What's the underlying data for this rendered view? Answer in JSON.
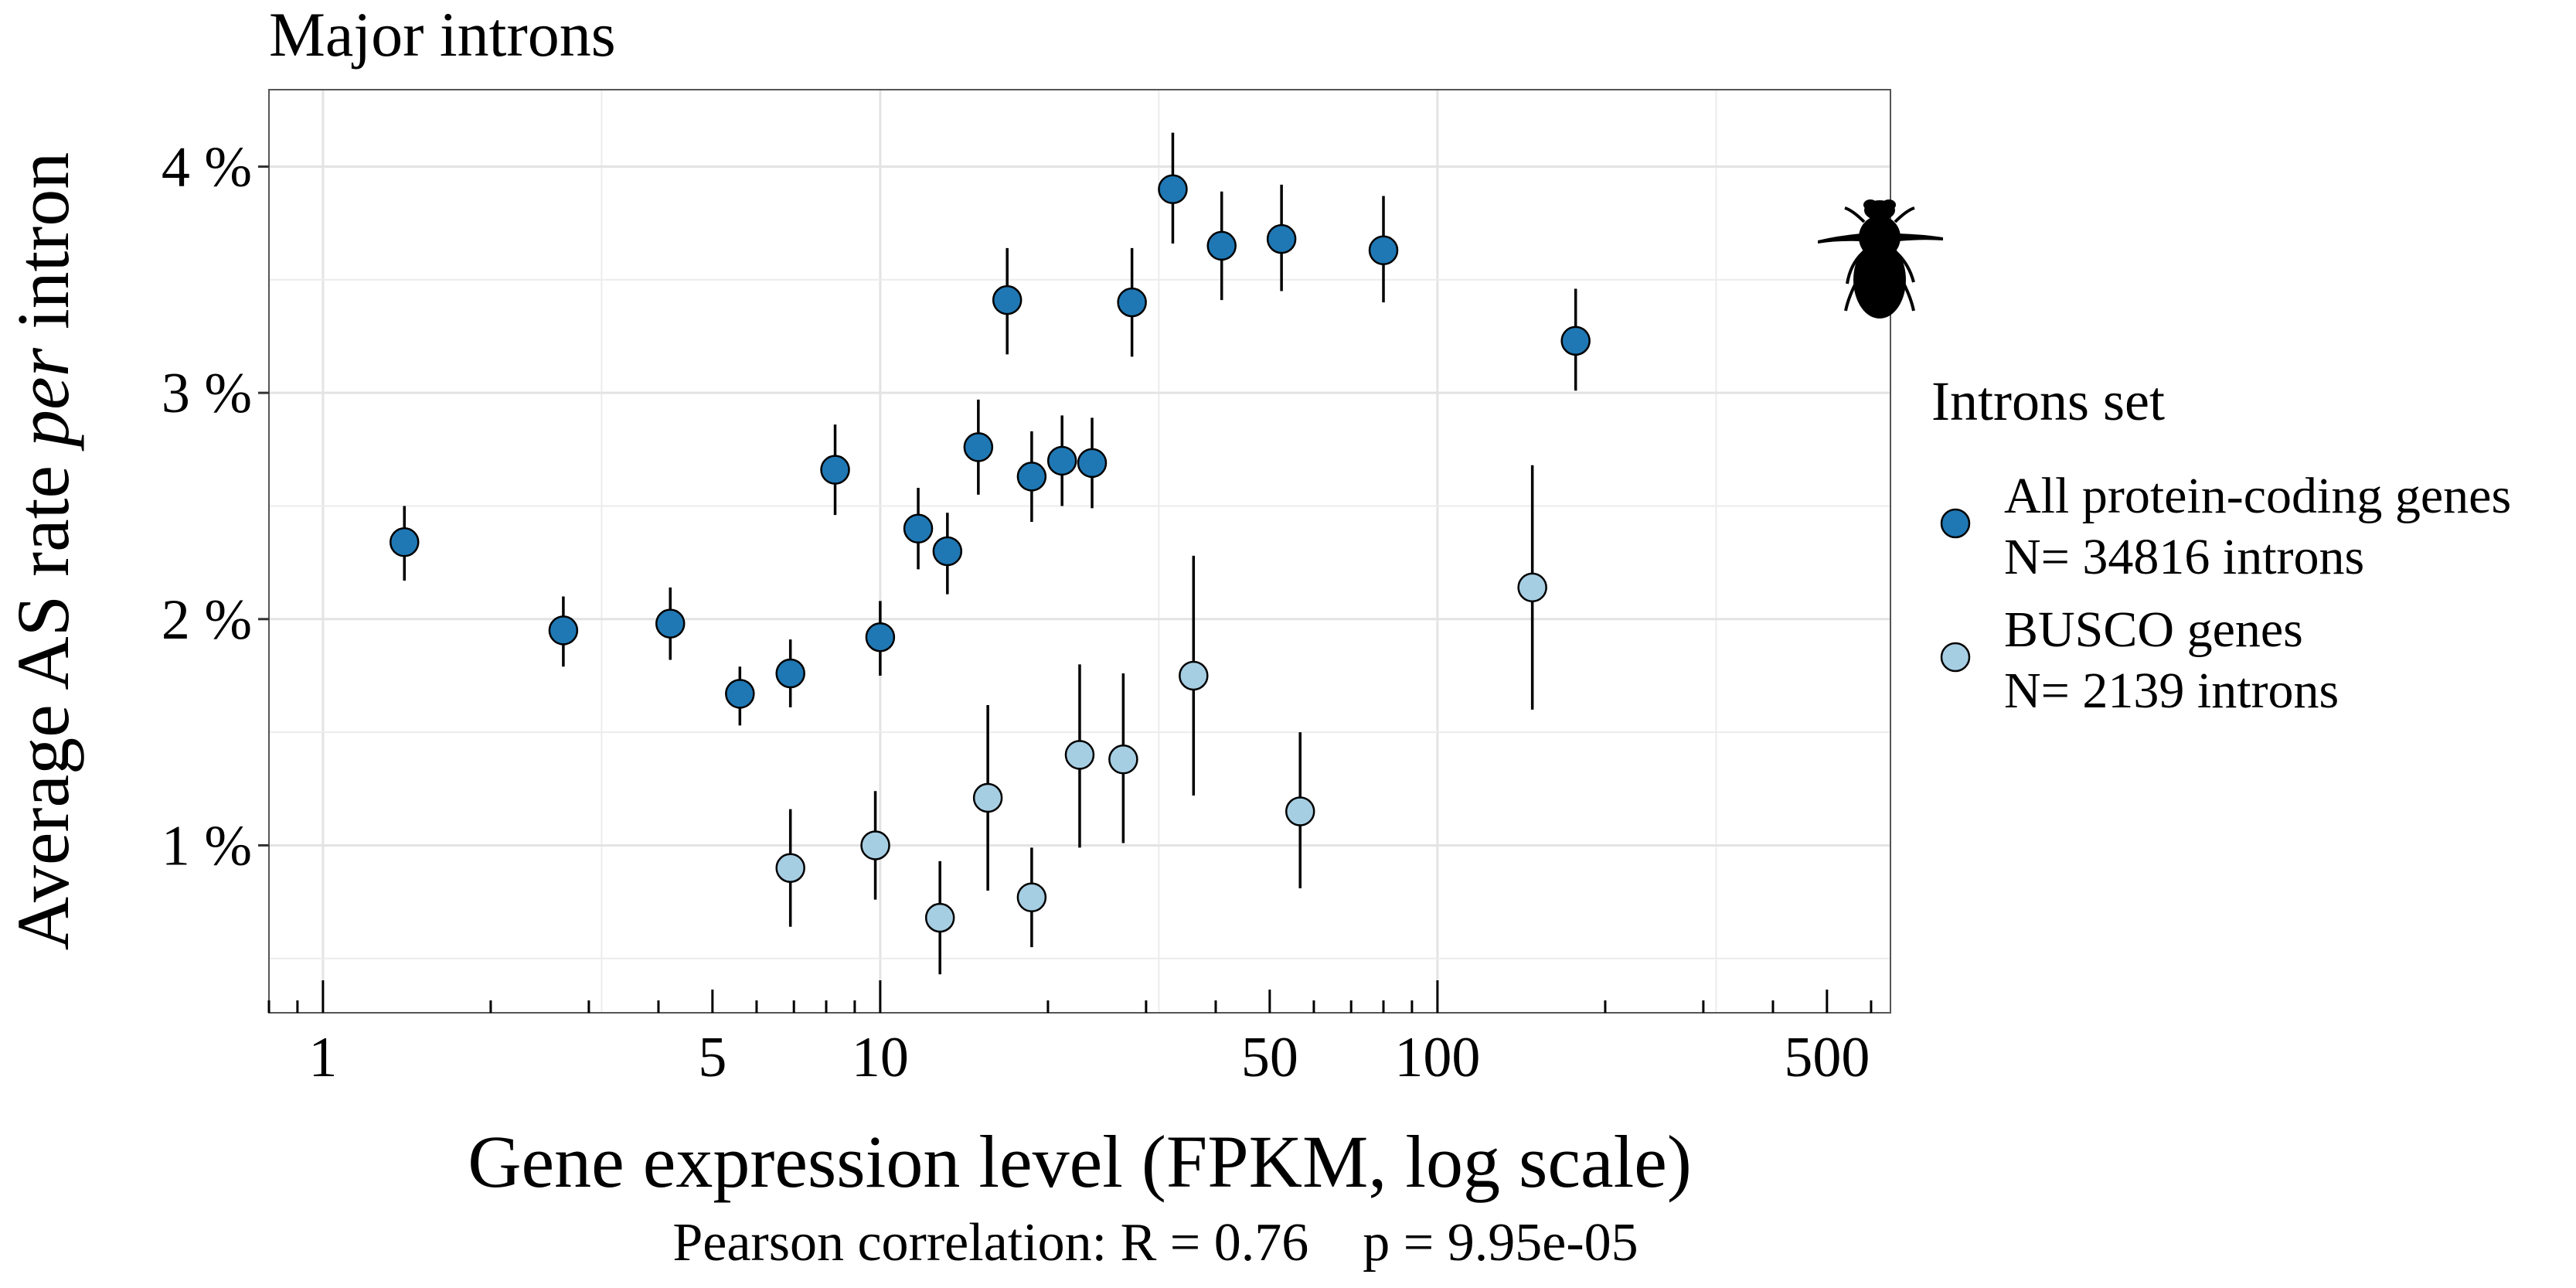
{
  "chart_data": {
    "type": "scatter",
    "title": "Major introns",
    "xlabel": "Gene expression level (FPKM, log scale)",
    "ylabel_prefix": "Average AS rate ",
    "ylabel_italic": "per",
    "ylabel_suffix": " intron",
    "x_scale": "log",
    "xlim": [
      0.8,
      650
    ],
    "ylim": [
      0.26,
      4.34
    ],
    "x_ticks": [
      1,
      5,
      10,
      50,
      100,
      500
    ],
    "x_tick_labels": [
      "1",
      "5",
      "10",
      "50",
      "100",
      "500"
    ],
    "y_ticks": [
      1,
      2,
      3,
      4
    ],
    "y_tick_labels": [
      "1 %",
      "2 %",
      "3 %",
      "4 %"
    ],
    "grid": true,
    "legend_position": "right",
    "legend_title": "Introns set",
    "footnote": "Pearson correlation: R = 0.76    p = 9.95e-05",
    "series": [
      {
        "name": "All protein-coding genes",
        "subtitle": "N= 34816 introns",
        "color": "#1f78b4",
        "points": [
          {
            "x": 1.4,
            "y": 2.34,
            "ylo": 2.17,
            "yhi": 2.5
          },
          {
            "x": 2.7,
            "y": 1.95,
            "ylo": 1.79,
            "yhi": 2.1
          },
          {
            "x": 4.2,
            "y": 1.98,
            "ylo": 1.82,
            "yhi": 2.14
          },
          {
            "x": 5.6,
            "y": 1.67,
            "ylo": 1.53,
            "yhi": 1.79
          },
          {
            "x": 6.9,
            "y": 1.76,
            "ylo": 1.61,
            "yhi": 1.91
          },
          {
            "x": 8.3,
            "y": 2.66,
            "ylo": 2.46,
            "yhi": 2.86
          },
          {
            "x": 10.0,
            "y": 1.92,
            "ylo": 1.75,
            "yhi": 2.08
          },
          {
            "x": 11.7,
            "y": 2.4,
            "ylo": 2.22,
            "yhi": 2.58
          },
          {
            "x": 13.2,
            "y": 2.3,
            "ylo": 2.11,
            "yhi": 2.47
          },
          {
            "x": 15.0,
            "y": 2.76,
            "ylo": 2.55,
            "yhi": 2.97
          },
          {
            "x": 16.9,
            "y": 3.41,
            "ylo": 3.17,
            "yhi": 3.64
          },
          {
            "x": 18.7,
            "y": 2.63,
            "ylo": 2.43,
            "yhi": 2.83
          },
          {
            "x": 21.2,
            "y": 2.7,
            "ylo": 2.5,
            "yhi": 2.9
          },
          {
            "x": 24.0,
            "y": 2.69,
            "ylo": 2.49,
            "yhi": 2.89
          },
          {
            "x": 28.3,
            "y": 3.4,
            "ylo": 3.16,
            "yhi": 3.64
          },
          {
            "x": 33.5,
            "y": 3.9,
            "ylo": 3.66,
            "yhi": 4.15
          },
          {
            "x": 41.0,
            "y": 3.65,
            "ylo": 3.41,
            "yhi": 3.89
          },
          {
            "x": 52.5,
            "y": 3.68,
            "ylo": 3.45,
            "yhi": 3.92
          },
          {
            "x": 80.0,
            "y": 3.63,
            "ylo": 3.4,
            "yhi": 3.87
          },
          {
            "x": 177.0,
            "y": 3.23,
            "ylo": 3.01,
            "yhi": 3.46
          }
        ]
      },
      {
        "name": "BUSCO genes",
        "subtitle": "N= 2139 introns",
        "color": "#a6cee3",
        "points": [
          {
            "x": 6.9,
            "y": 0.9,
            "ylo": 0.64,
            "yhi": 1.16
          },
          {
            "x": 9.8,
            "y": 1.0,
            "ylo": 0.76,
            "yhi": 1.24
          },
          {
            "x": 12.8,
            "y": 0.68,
            "ylo": 0.43,
            "yhi": 0.93
          },
          {
            "x": 15.6,
            "y": 1.21,
            "ylo": 0.8,
            "yhi": 1.62
          },
          {
            "x": 18.7,
            "y": 0.77,
            "ylo": 0.55,
            "yhi": 0.99
          },
          {
            "x": 22.8,
            "y": 1.4,
            "ylo": 0.99,
            "yhi": 1.8
          },
          {
            "x": 27.3,
            "y": 1.38,
            "ylo": 1.01,
            "yhi": 1.76
          },
          {
            "x": 36.5,
            "y": 1.75,
            "ylo": 1.22,
            "yhi": 2.28
          },
          {
            "x": 56.7,
            "y": 1.15,
            "ylo": 0.81,
            "yhi": 1.5
          },
          {
            "x": 148.0,
            "y": 2.14,
            "ylo": 1.6,
            "yhi": 2.68
          }
        ]
      }
    ]
  },
  "icon": "fly-silhouette-icon"
}
